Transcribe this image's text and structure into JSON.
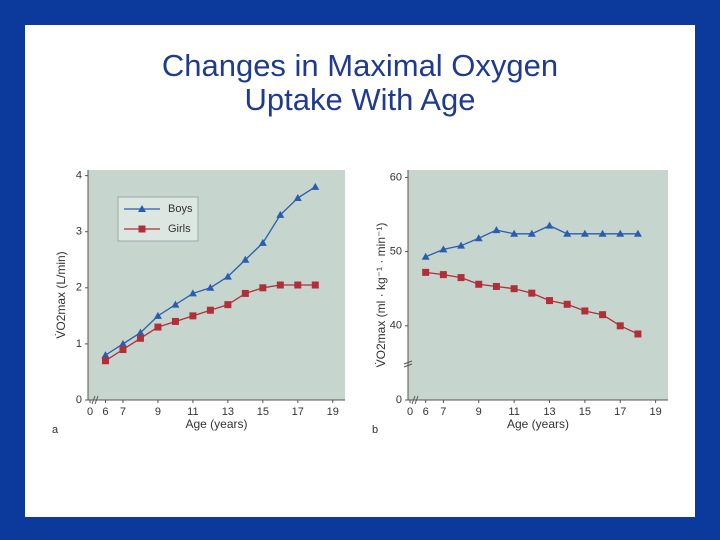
{
  "slide": {
    "title": "Changes in Maximal Oxygen Uptake With Age"
  },
  "chart_data": [
    {
      "type": "line",
      "panel": "a",
      "x_label": "Age (years)",
      "y_label": "V̇O2max (L/min)",
      "x": [
        6,
        7,
        8,
        9,
        10,
        11,
        12,
        13,
        14,
        15,
        16,
        17,
        18
      ],
      "series": [
        {
          "name": "Boys",
          "color": "#2a5db0",
          "marker": "triangle",
          "values": [
            0.8,
            1.0,
            1.2,
            1.5,
            1.7,
            1.9,
            2.0,
            2.2,
            2.5,
            2.8,
            3.3,
            3.6,
            3.8
          ]
        },
        {
          "name": "Girls",
          "color": "#b0303a",
          "marker": "square",
          "values": [
            0.7,
            0.9,
            1.1,
            1.3,
            1.4,
            1.5,
            1.6,
            1.7,
            1.9,
            2.0,
            2.05,
            2.05,
            2.05
          ]
        }
      ],
      "xlim": [
        5,
        19.7
      ],
      "xticks": [
        0,
        6,
        7,
        9,
        11,
        13,
        15,
        17,
        19
      ],
      "ylim": [
        0,
        4.1
      ],
      "yticks": [
        0,
        1,
        2,
        3,
        4
      ],
      "axis_break": "x",
      "legend": "upper left"
    },
    {
      "type": "line",
      "panel": "b",
      "x_label": "Age (years)",
      "y_label": "V̇O2max (ml · kg⁻¹ · min⁻¹)",
      "x": [
        6,
        7,
        8,
        9,
        10,
        11,
        12,
        13,
        14,
        15,
        16,
        17,
        18
      ],
      "series": [
        {
          "color": "#2a5db0",
          "marker": "triangle",
          "values": [
            49.3,
            50.3,
            50.8,
            51.8,
            52.9,
            52.4,
            52.4,
            53.5,
            52.4,
            52.4,
            52.4,
            52.4,
            52.4
          ]
        },
        {
          "color": "#b0303a",
          "marker": "square",
          "values": [
            47.2,
            46.9,
            46.5,
            45.6,
            45.3,
            45.0,
            44.4,
            43.4,
            42.9,
            42.0,
            41.5,
            40.0,
            38.9
          ]
        }
      ],
      "xlim": [
        5,
        19.7
      ],
      "xticks": [
        0,
        6,
        7,
        9,
        11,
        13,
        15,
        17,
        19
      ],
      "ylim": [
        30,
        61
      ],
      "yticks": [
        0,
        40,
        50,
        60
      ],
      "axis_break": "xy"
    }
  ]
}
